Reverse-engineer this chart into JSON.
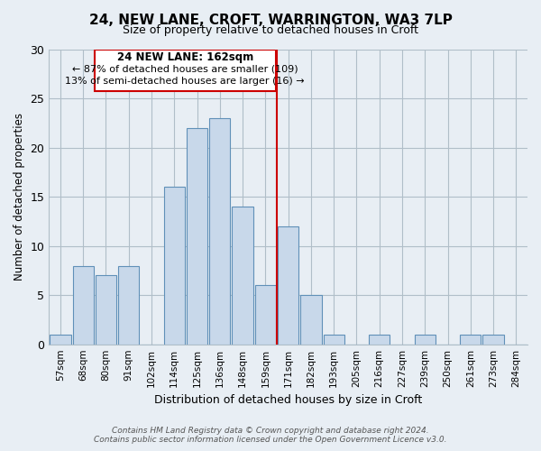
{
  "title": "24, NEW LANE, CROFT, WARRINGTON, WA3 7LP",
  "subtitle": "Size of property relative to detached houses in Croft",
  "xlabel": "Distribution of detached houses by size in Croft",
  "ylabel": "Number of detached properties",
  "bar_labels": [
    "57sqm",
    "68sqm",
    "80sqm",
    "91sqm",
    "102sqm",
    "114sqm",
    "125sqm",
    "136sqm",
    "148sqm",
    "159sqm",
    "171sqm",
    "182sqm",
    "193sqm",
    "205sqm",
    "216sqm",
    "227sqm",
    "239sqm",
    "250sqm",
    "261sqm",
    "273sqm",
    "284sqm"
  ],
  "bar_values": [
    1,
    8,
    7,
    8,
    0,
    16,
    22,
    23,
    14,
    6,
    12,
    5,
    1,
    0,
    1,
    0,
    1,
    0,
    1,
    1,
    0
  ],
  "bar_color": "#c8d8ea",
  "bar_edge_color": "#6090b8",
  "vline_x": 10,
  "vline_color": "#cc0000",
  "ylim": [
    0,
    30
  ],
  "yticks": [
    0,
    5,
    10,
    15,
    20,
    25,
    30
  ],
  "annotation_title": "24 NEW LANE: 162sqm",
  "annotation_line1": "← 87% of detached houses are smaller (109)",
  "annotation_line2": "13% of semi-detached houses are larger (16) →",
  "footer_line1": "Contains HM Land Registry data © Crown copyright and database right 2024.",
  "footer_line2": "Contains public sector information licensed under the Open Government Licence v3.0.",
  "bg_color": "#e8eef4",
  "plot_bg_color": "#e8eef4",
  "grid_color": "#b0bec8"
}
